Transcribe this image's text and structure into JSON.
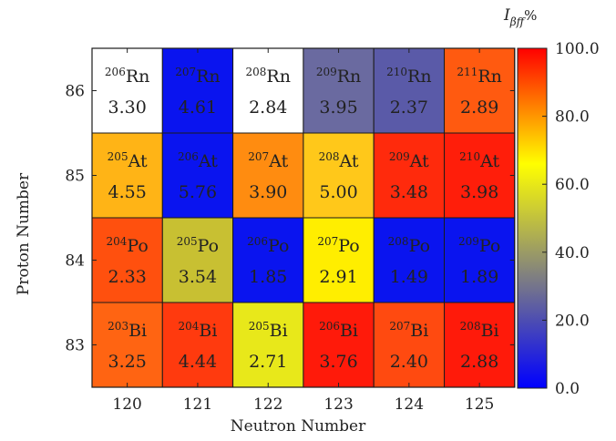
{
  "chart_data": {
    "type": "heatmap",
    "title": "",
    "xlabel": "Neutron Number",
    "ylabel": "Proton Number",
    "x_categories": [
      "120",
      "121",
      "122",
      "123",
      "124",
      "125"
    ],
    "y_categories": [
      "86",
      "85",
      "84",
      "83"
    ],
    "colorbar": {
      "title_main": "I",
      "title_sub": "βff",
      "title_suffix": "%",
      "range": [
        0,
        100
      ],
      "ticks": [
        "0.0",
        "20.0",
        "40.0",
        "60.0",
        "80.0",
        "100.0"
      ],
      "colors": [
        "#0000ff",
        "#808080",
        "#ffff00",
        "#ff0000"
      ]
    },
    "cells": [
      {
        "proton": "86",
        "neutron": "120",
        "mass": "206",
        "symbol": "Rn",
        "value": "3.30",
        "color": "#ffffff"
      },
      {
        "proton": "86",
        "neutron": "121",
        "mass": "207",
        "symbol": "Rn",
        "value": "4.61",
        "color": "#0a14ef"
      },
      {
        "proton": "86",
        "neutron": "122",
        "mass": "208",
        "symbol": "Rn",
        "value": "2.84",
        "color": "#ffffff"
      },
      {
        "proton": "86",
        "neutron": "123",
        "mass": "209",
        "symbol": "Rn",
        "value": "3.95",
        "color": "#6a6aa0"
      },
      {
        "proton": "86",
        "neutron": "124",
        "mass": "210",
        "symbol": "Rn",
        "value": "2.37",
        "color": "#5a5aa8"
      },
      {
        "proton": "86",
        "neutron": "125",
        "mass": "211",
        "symbol": "Rn",
        "value": "2.89",
        "color": "#ff5a10"
      },
      {
        "proton": "85",
        "neutron": "120",
        "mass": "205",
        "symbol": "At",
        "value": "4.55",
        "color": "#ffb416"
      },
      {
        "proton": "85",
        "neutron": "121",
        "mass": "206",
        "symbol": "At",
        "value": "5.76",
        "color": "#0a14ef"
      },
      {
        "proton": "85",
        "neutron": "122",
        "mass": "207",
        "symbol": "At",
        "value": "3.90",
        "color": "#ff8c10"
      },
      {
        "proton": "85",
        "neutron": "123",
        "mass": "208",
        "symbol": "At",
        "value": "5.00",
        "color": "#ffc81a"
      },
      {
        "proton": "85",
        "neutron": "124",
        "mass": "209",
        "symbol": "At",
        "value": "3.48",
        "color": "#ff2a0c"
      },
      {
        "proton": "85",
        "neutron": "125",
        "mass": "210",
        "symbol": "At",
        "value": "3.98",
        "color": "#ff1e0a"
      },
      {
        "proton": "84",
        "neutron": "120",
        "mass": "204",
        "symbol": "Po",
        "value": "2.33",
        "color": "#ff500e"
      },
      {
        "proton": "84",
        "neutron": "121",
        "mass": "205",
        "symbol": "Po",
        "value": "3.54",
        "color": "#c8c032"
      },
      {
        "proton": "84",
        "neutron": "122",
        "mass": "206",
        "symbol": "Po",
        "value": "1.85",
        "color": "#0a14ef"
      },
      {
        "proton": "84",
        "neutron": "123",
        "mass": "207",
        "symbol": "Po",
        "value": "2.91",
        "color": "#ffee00"
      },
      {
        "proton": "84",
        "neutron": "124",
        "mass": "208",
        "symbol": "Po",
        "value": "1.49",
        "color": "#0a14ef"
      },
      {
        "proton": "84",
        "neutron": "125",
        "mass": "209",
        "symbol": "Po",
        "value": "1.89",
        "color": "#0a14ef"
      },
      {
        "proton": "83",
        "neutron": "120",
        "mass": "203",
        "symbol": "Bi",
        "value": "3.25",
        "color": "#ff6412"
      },
      {
        "proton": "83",
        "neutron": "121",
        "mass": "204",
        "symbol": "Bi",
        "value": "4.44",
        "color": "#ff3a0e"
      },
      {
        "proton": "83",
        "neutron": "122",
        "mass": "205",
        "symbol": "Bi",
        "value": "2.71",
        "color": "#e8e81a"
      },
      {
        "proton": "83",
        "neutron": "123",
        "mass": "206",
        "symbol": "Bi",
        "value": "3.76",
        "color": "#ff1a0a"
      },
      {
        "proton": "83",
        "neutron": "124",
        "mass": "207",
        "symbol": "Bi",
        "value": "2.40",
        "color": "#ff4a10"
      },
      {
        "proton": "83",
        "neutron": "125",
        "mass": "208",
        "symbol": "Bi",
        "value": "2.88",
        "color": "#ff1a0a"
      }
    ]
  }
}
